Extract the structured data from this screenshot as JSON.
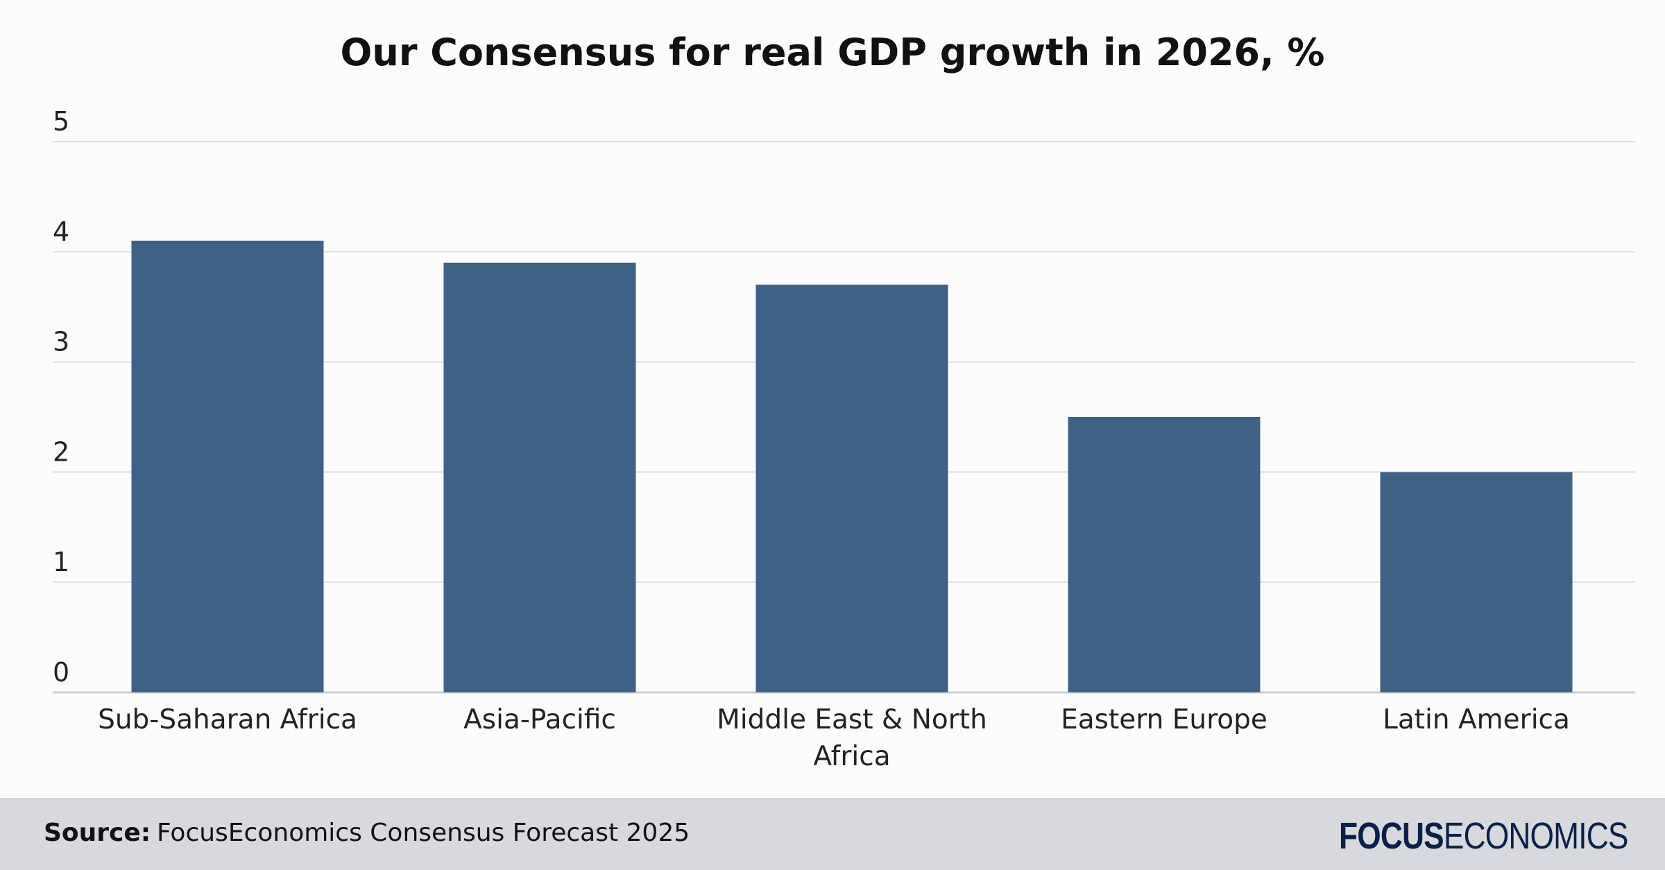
{
  "chart_data": {
    "type": "bar",
    "title": "Our Consensus for real GDP growth in 2026, %",
    "categories": [
      "Sub-Saharan Africa",
      "Asia-Pacific",
      "Middle East & North Africa",
      "Eastern Europe",
      "Latin America"
    ],
    "values": [
      4.1,
      3.9,
      3.7,
      2.5,
      2.0
    ],
    "ylim": [
      0,
      5
    ],
    "yticks": [
      "0",
      "1",
      "2",
      "3",
      "4",
      "5"
    ],
    "xlabel": "",
    "ylabel": "",
    "grid": true,
    "bar_color": "#3d6286",
    "grid_color": "#e0e0e0"
  },
  "footer": {
    "source_label": "Source:",
    "source_text": "FocusEconomics Consensus Forecast 2025",
    "logo_bold": "FOCUS",
    "logo_light": "ECONOMICS"
  }
}
